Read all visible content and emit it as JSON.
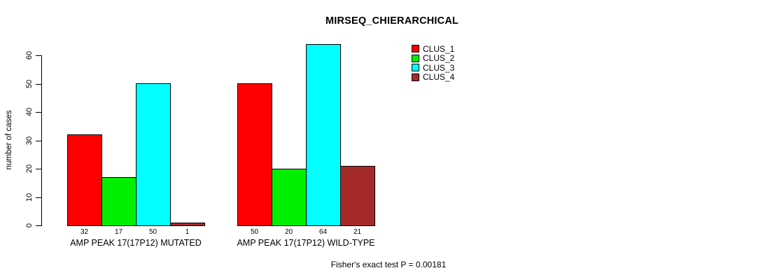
{
  "title": "MIRSEQ_CHIERARCHICAL",
  "y_axis": {
    "label": "number of cases",
    "ticks": [
      0,
      10,
      20,
      30,
      40,
      50,
      60
    ]
  },
  "footer": "Fisher's exact test P = 0.00181",
  "chart_data": {
    "type": "bar",
    "title": "MIRSEQ_CHIERARCHICAL",
    "xlabel": "",
    "ylabel": "number of cases",
    "ylim": [
      0,
      65
    ],
    "grid": false,
    "legend_position": "top-right",
    "categories": [
      "AMP PEAK 17(17P12) MUTATED",
      "AMP PEAK 17(17P12) WILD-TYPE"
    ],
    "series": [
      {
        "name": "CLUS_1",
        "color": "#FF0000",
        "values": [
          32,
          50
        ]
      },
      {
        "name": "CLUS_2",
        "color": "#00EE00",
        "values": [
          17,
          20
        ]
      },
      {
        "name": "CLUS_3",
        "color": "#00FFFF",
        "values": [
          50,
          64
        ]
      },
      {
        "name": "CLUS_4",
        "color": "#A52A2A",
        "values": [
          1,
          21
        ]
      }
    ],
    "bar_value_labels": true,
    "annotation": "Fisher's exact test P = 0.00181"
  }
}
